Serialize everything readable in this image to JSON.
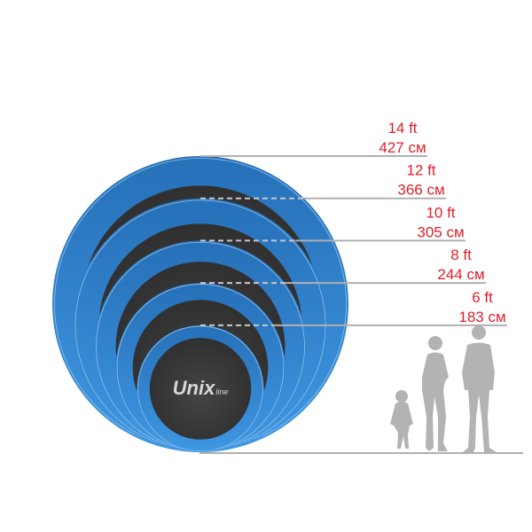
{
  "colors": {
    "ring": "#2b7bc6",
    "ring_light": "#3f97e2",
    "mat": "#3a3a3a",
    "label": "#e0202c",
    "line": "#b0b0b0",
    "people": "#b3b3b3"
  },
  "logo": {
    "main": "Unix",
    "sub": "line"
  },
  "sizes": [
    {
      "ft": "14 ft",
      "cm": "427 см",
      "diameter_cm": 427
    },
    {
      "ft": "12 ft",
      "cm": "366 см",
      "diameter_cm": 366
    },
    {
      "ft": "10 ft",
      "cm": "305 см",
      "diameter_cm": 305
    },
    {
      "ft": "8 ft",
      "cm": "244 см",
      "diameter_cm": 244
    },
    {
      "ft": "6 ft",
      "cm": "183 см",
      "diameter_cm": 183
    }
  ],
  "scale_figures": [
    "man-silhouette",
    "woman-silhouette",
    "child-silhouette"
  ]
}
